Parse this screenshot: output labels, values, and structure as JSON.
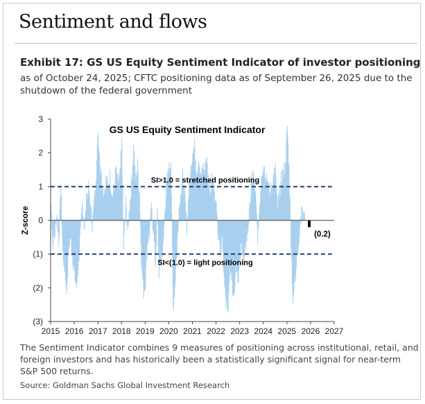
{
  "section_title": "Sentiment and flows",
  "exhibit_title": "Exhibit 17: GS US Equity Sentiment Indicator of investor positioning",
  "subtitle": "as of October 24, 2025; CFTC positioning data as of September 26, 2025 due to the shutdown of the federal government",
  "caption": "The Sentiment Indicator combines 9 measures of positioning across institutional, retail, and foreign investors and has historically been a statistically significant signal for near-term S&P 500 returns.",
  "source": "Source: Goldman Sachs Global Investment Research",
  "colors": {
    "bars": "#a9d0ee",
    "latest_bar": "#000000",
    "reference_lines": "#1f3b70",
    "axis": "#444444"
  },
  "chart_data": {
    "type": "bar",
    "title": "GS US Equity  Sentiment Indicator",
    "xlabel": "",
    "ylabel": "Z-score",
    "xlim": [
      2015,
      2027
    ],
    "ylim": [
      -3,
      3
    ],
    "xticks": [
      "2015",
      "2016",
      "2017",
      "2018",
      "2019",
      "2020",
      "2021",
      "2022",
      "2023",
      "2024",
      "2025",
      "2026",
      "2027"
    ],
    "yticks": [
      {
        "value": 3,
        "label": "3"
      },
      {
        "value": 2,
        "label": "2"
      },
      {
        "value": 1,
        "label": "1"
      },
      {
        "value": 0,
        "label": "0"
      },
      {
        "value": -1,
        "label": "(1)"
      },
      {
        "value": -2,
        "label": "(2)"
      },
      {
        "value": -3,
        "label": "(3)"
      }
    ],
    "reference_lines": [
      {
        "value": 1.0,
        "label": "SI>1.0 = stretched positioning"
      },
      {
        "value": -1.0,
        "label": "SI<(1.0) = light positioning"
      }
    ],
    "latest": {
      "x": 2025.8,
      "value": -0.2,
      "label": "(0.2)"
    },
    "series": [
      {
        "name": "Sentiment Indicator (Z-score)",
        "points": [
          [
            2015.0,
            0.5
          ],
          [
            2015.08,
            -0.7
          ],
          [
            2015.17,
            -0.4
          ],
          [
            2015.25,
            0.2
          ],
          [
            2015.33,
            -0.6
          ],
          [
            2015.42,
            1.0
          ],
          [
            2015.5,
            -1.0
          ],
          [
            2015.58,
            -1.4
          ],
          [
            2015.67,
            -2.1
          ],
          [
            2015.75,
            -0.8
          ],
          [
            2015.83,
            -0.5
          ],
          [
            2015.92,
            -1.1
          ],
          [
            2016.0,
            -1.6
          ],
          [
            2016.08,
            -2.0
          ],
          [
            2016.17,
            -1.2
          ],
          [
            2016.25,
            -0.4
          ],
          [
            2016.33,
            0.5
          ],
          [
            2016.42,
            -0.2
          ],
          [
            2016.5,
            0.6
          ],
          [
            2016.58,
            0.9
          ],
          [
            2016.67,
            0.4
          ],
          [
            2016.75,
            -0.1
          ],
          [
            2016.83,
            0.5
          ],
          [
            2016.92,
            1.5
          ],
          [
            2017.0,
            2.6
          ],
          [
            2017.08,
            1.7
          ],
          [
            2017.17,
            1.1
          ],
          [
            2017.25,
            0.8
          ],
          [
            2017.33,
            1.2
          ],
          [
            2017.42,
            1.0
          ],
          [
            2017.5,
            1.3
          ],
          [
            2017.58,
            0.7
          ],
          [
            2017.67,
            0.9
          ],
          [
            2017.75,
            1.5
          ],
          [
            2017.83,
            1.1
          ],
          [
            2017.92,
            1.3
          ],
          [
            2018.0,
            2.3
          ],
          [
            2018.08,
            -0.8
          ],
          [
            2018.17,
            0.5
          ],
          [
            2018.25,
            -0.3
          ],
          [
            2018.33,
            0.4
          ],
          [
            2018.42,
            1.2
          ],
          [
            2018.5,
            2.2
          ],
          [
            2018.58,
            1.1
          ],
          [
            2018.67,
            1.6
          ],
          [
            2018.75,
            0.8
          ],
          [
            2018.83,
            -1.2
          ],
          [
            2018.92,
            -2.1
          ],
          [
            2019.0,
            -1.8
          ],
          [
            2019.08,
            -0.6
          ],
          [
            2019.17,
            -0.4
          ],
          [
            2019.25,
            0.3
          ],
          [
            2019.33,
            -0.2
          ],
          [
            2019.42,
            -1.3
          ],
          [
            2019.5,
            0.2
          ],
          [
            2019.58,
            -1.6
          ],
          [
            2019.67,
            -1.0
          ],
          [
            2019.75,
            -0.8
          ],
          [
            2019.83,
            0.4
          ],
          [
            2019.92,
            1.2
          ],
          [
            2020.0,
            1.5
          ],
          [
            2020.08,
            1.8
          ],
          [
            2020.17,
            -2.6
          ],
          [
            2020.25,
            -1.9
          ],
          [
            2020.33,
            -0.9
          ],
          [
            2020.42,
            0.4
          ],
          [
            2020.5,
            0.8
          ],
          [
            2020.58,
            1.3
          ],
          [
            2020.67,
            0.6
          ],
          [
            2020.75,
            -0.2
          ],
          [
            2020.83,
            0.8
          ],
          [
            2020.92,
            1.5
          ],
          [
            2021.0,
            2.1
          ],
          [
            2021.08,
            2.2
          ],
          [
            2021.17,
            1.4
          ],
          [
            2021.25,
            1.8
          ],
          [
            2021.33,
            1.2
          ],
          [
            2021.42,
            1.6
          ],
          [
            2021.5,
            1.4
          ],
          [
            2021.58,
            1.9
          ],
          [
            2021.67,
            1.1
          ],
          [
            2021.75,
            0.9
          ],
          [
            2021.83,
            1.4
          ],
          [
            2021.92,
            0.7
          ],
          [
            2022.0,
            0.3
          ],
          [
            2022.08,
            -0.5
          ],
          [
            2022.17,
            -1.0
          ],
          [
            2022.25,
            -0.5
          ],
          [
            2022.33,
            -1.6
          ],
          [
            2022.42,
            -2.4
          ],
          [
            2022.5,
            -2.6
          ],
          [
            2022.58,
            -1.2
          ],
          [
            2022.67,
            -1.9
          ],
          [
            2022.75,
            -2.1
          ],
          [
            2022.83,
            -1.2
          ],
          [
            2022.92,
            -1.7
          ],
          [
            2023.0,
            -1.2
          ],
          [
            2023.08,
            -0.6
          ],
          [
            2023.17,
            -1.4
          ],
          [
            2023.25,
            -0.7
          ],
          [
            2023.33,
            -0.3
          ],
          [
            2023.42,
            0.4
          ],
          [
            2023.5,
            1.2
          ],
          [
            2023.58,
            1.3
          ],
          [
            2023.67,
            0.6
          ],
          [
            2023.75,
            -0.5
          ],
          [
            2023.83,
            0.5
          ],
          [
            2023.92,
            1.5
          ],
          [
            2024.0,
            1.6
          ],
          [
            2024.08,
            1.4
          ],
          [
            2024.17,
            1.2
          ],
          [
            2024.25,
            0.7
          ],
          [
            2024.33,
            1.0
          ],
          [
            2024.42,
            1.3
          ],
          [
            2024.5,
            1.5
          ],
          [
            2024.58,
            0.3
          ],
          [
            2024.67,
            0.8
          ],
          [
            2024.75,
            1.2
          ],
          [
            2024.83,
            1.4
          ],
          [
            2024.92,
            1.6
          ],
          [
            2025.0,
            2.8
          ],
          [
            2025.08,
            1.5
          ],
          [
            2025.17,
            -0.9
          ],
          [
            2025.25,
            -2.5
          ],
          [
            2025.33,
            -1.7
          ],
          [
            2025.42,
            -0.9
          ],
          [
            2025.5,
            -0.6
          ],
          [
            2025.58,
            0.1
          ],
          [
            2025.67,
            0.3
          ],
          [
            2025.75,
            0.1
          ]
        ]
      }
    ]
  }
}
